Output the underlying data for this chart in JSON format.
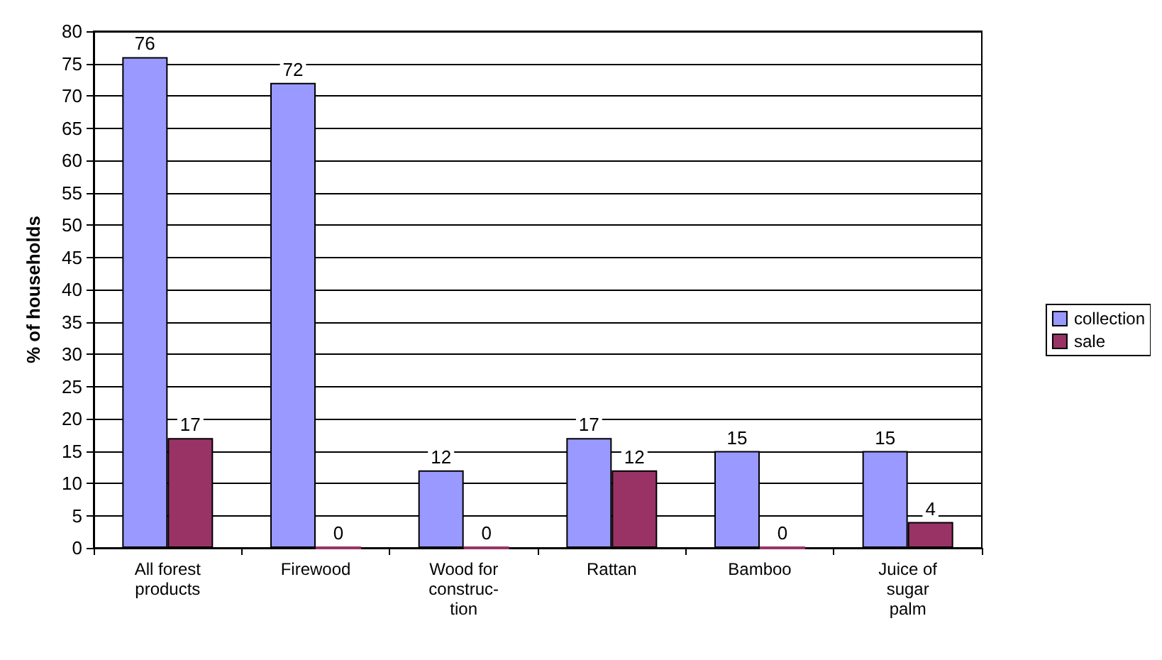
{
  "chart_data": {
    "type": "bar",
    "ylabel": "% of households",
    "categories": [
      "All forest\nproducts",
      "Firewood",
      "Wood for\nconstruc-\ntion",
      "Rattan",
      "Bamboo",
      "Juice of\nsugar\npalm"
    ],
    "series": [
      {
        "name": "collection",
        "color": "#9999ff",
        "values": [
          76,
          72,
          12,
          17,
          15,
          15
        ]
      },
      {
        "name": "sale",
        "color": "#993366",
        "values": [
          17,
          0,
          0,
          12,
          0,
          4
        ]
      }
    ],
    "ylim": [
      0,
      80
    ],
    "yticks": [
      0,
      5,
      10,
      15,
      20,
      25,
      30,
      35,
      40,
      45,
      50,
      55,
      60,
      65,
      70,
      75,
      80
    ],
    "grid": "y",
    "legend": "right",
    "data_labels": true
  }
}
